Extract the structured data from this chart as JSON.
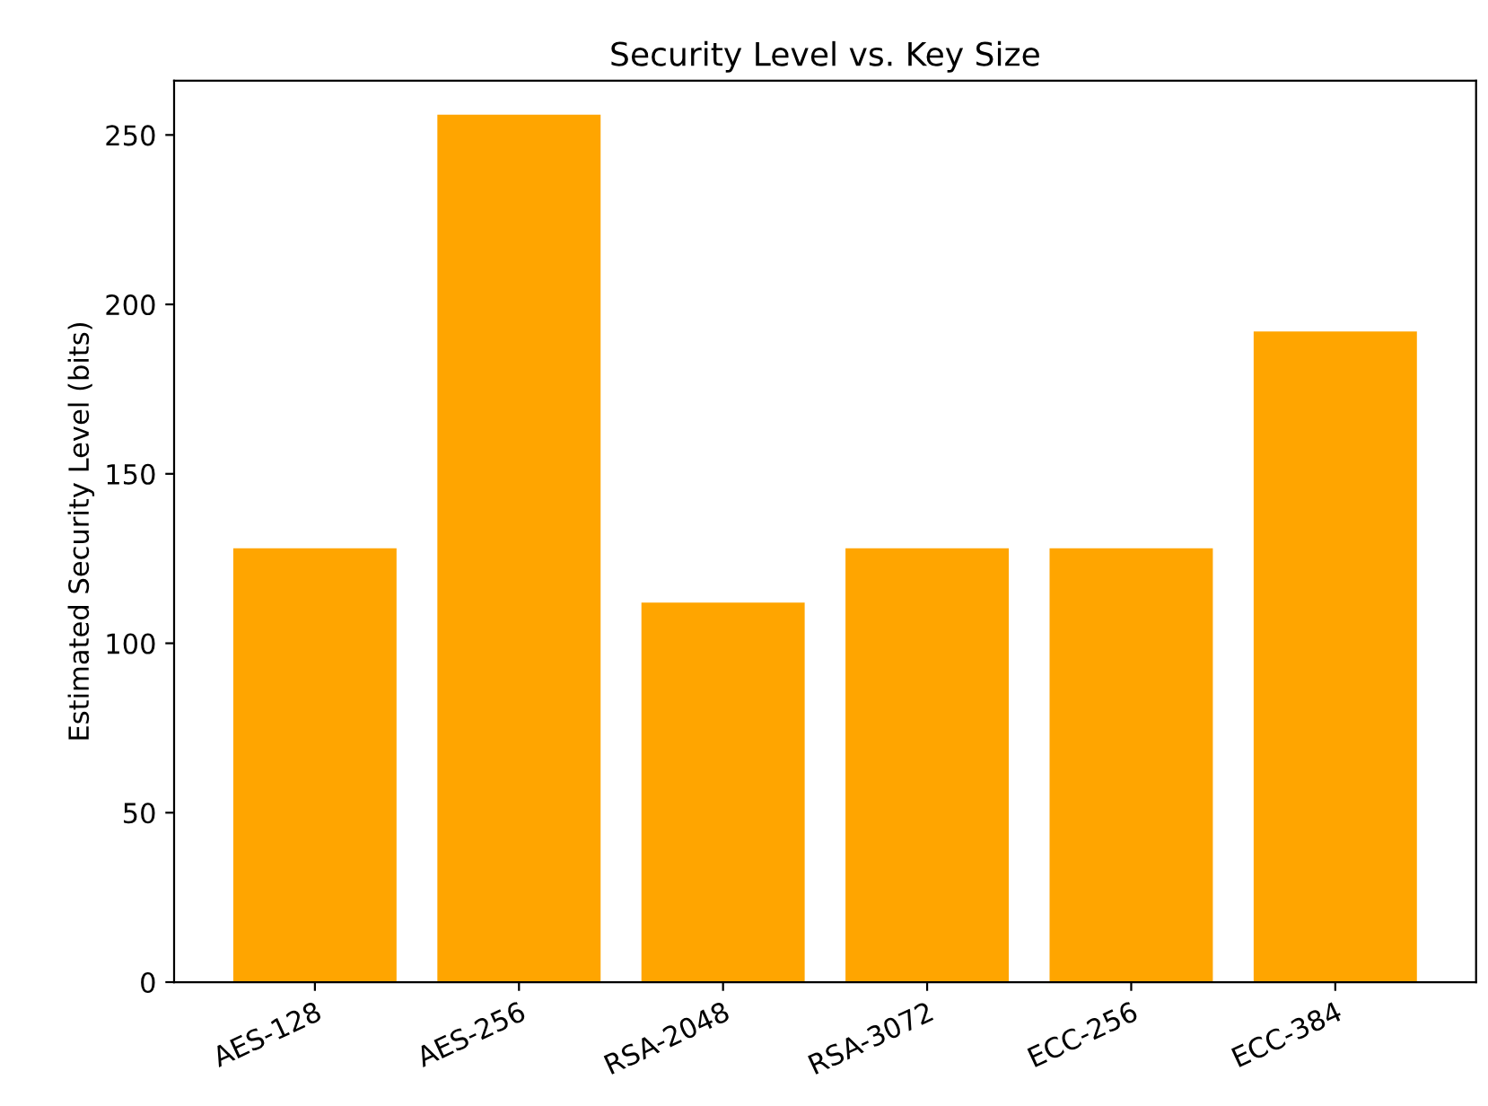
{
  "chart_data": {
    "type": "bar",
    "title": "Security Level vs. Key Size",
    "ylabel": "Estimated Security Level (bits)",
    "categories": [
      "AES-128",
      "AES-256",
      "RSA-2048",
      "RSA-3072",
      "ECC-256",
      "ECC-384"
    ],
    "values": [
      128,
      256,
      112,
      128,
      128,
      192
    ],
    "color": "#ffa500",
    "ylim": [
      0,
      266
    ],
    "yticks": [
      0,
      50,
      100,
      150,
      200,
      250
    ],
    "grid": false
  }
}
